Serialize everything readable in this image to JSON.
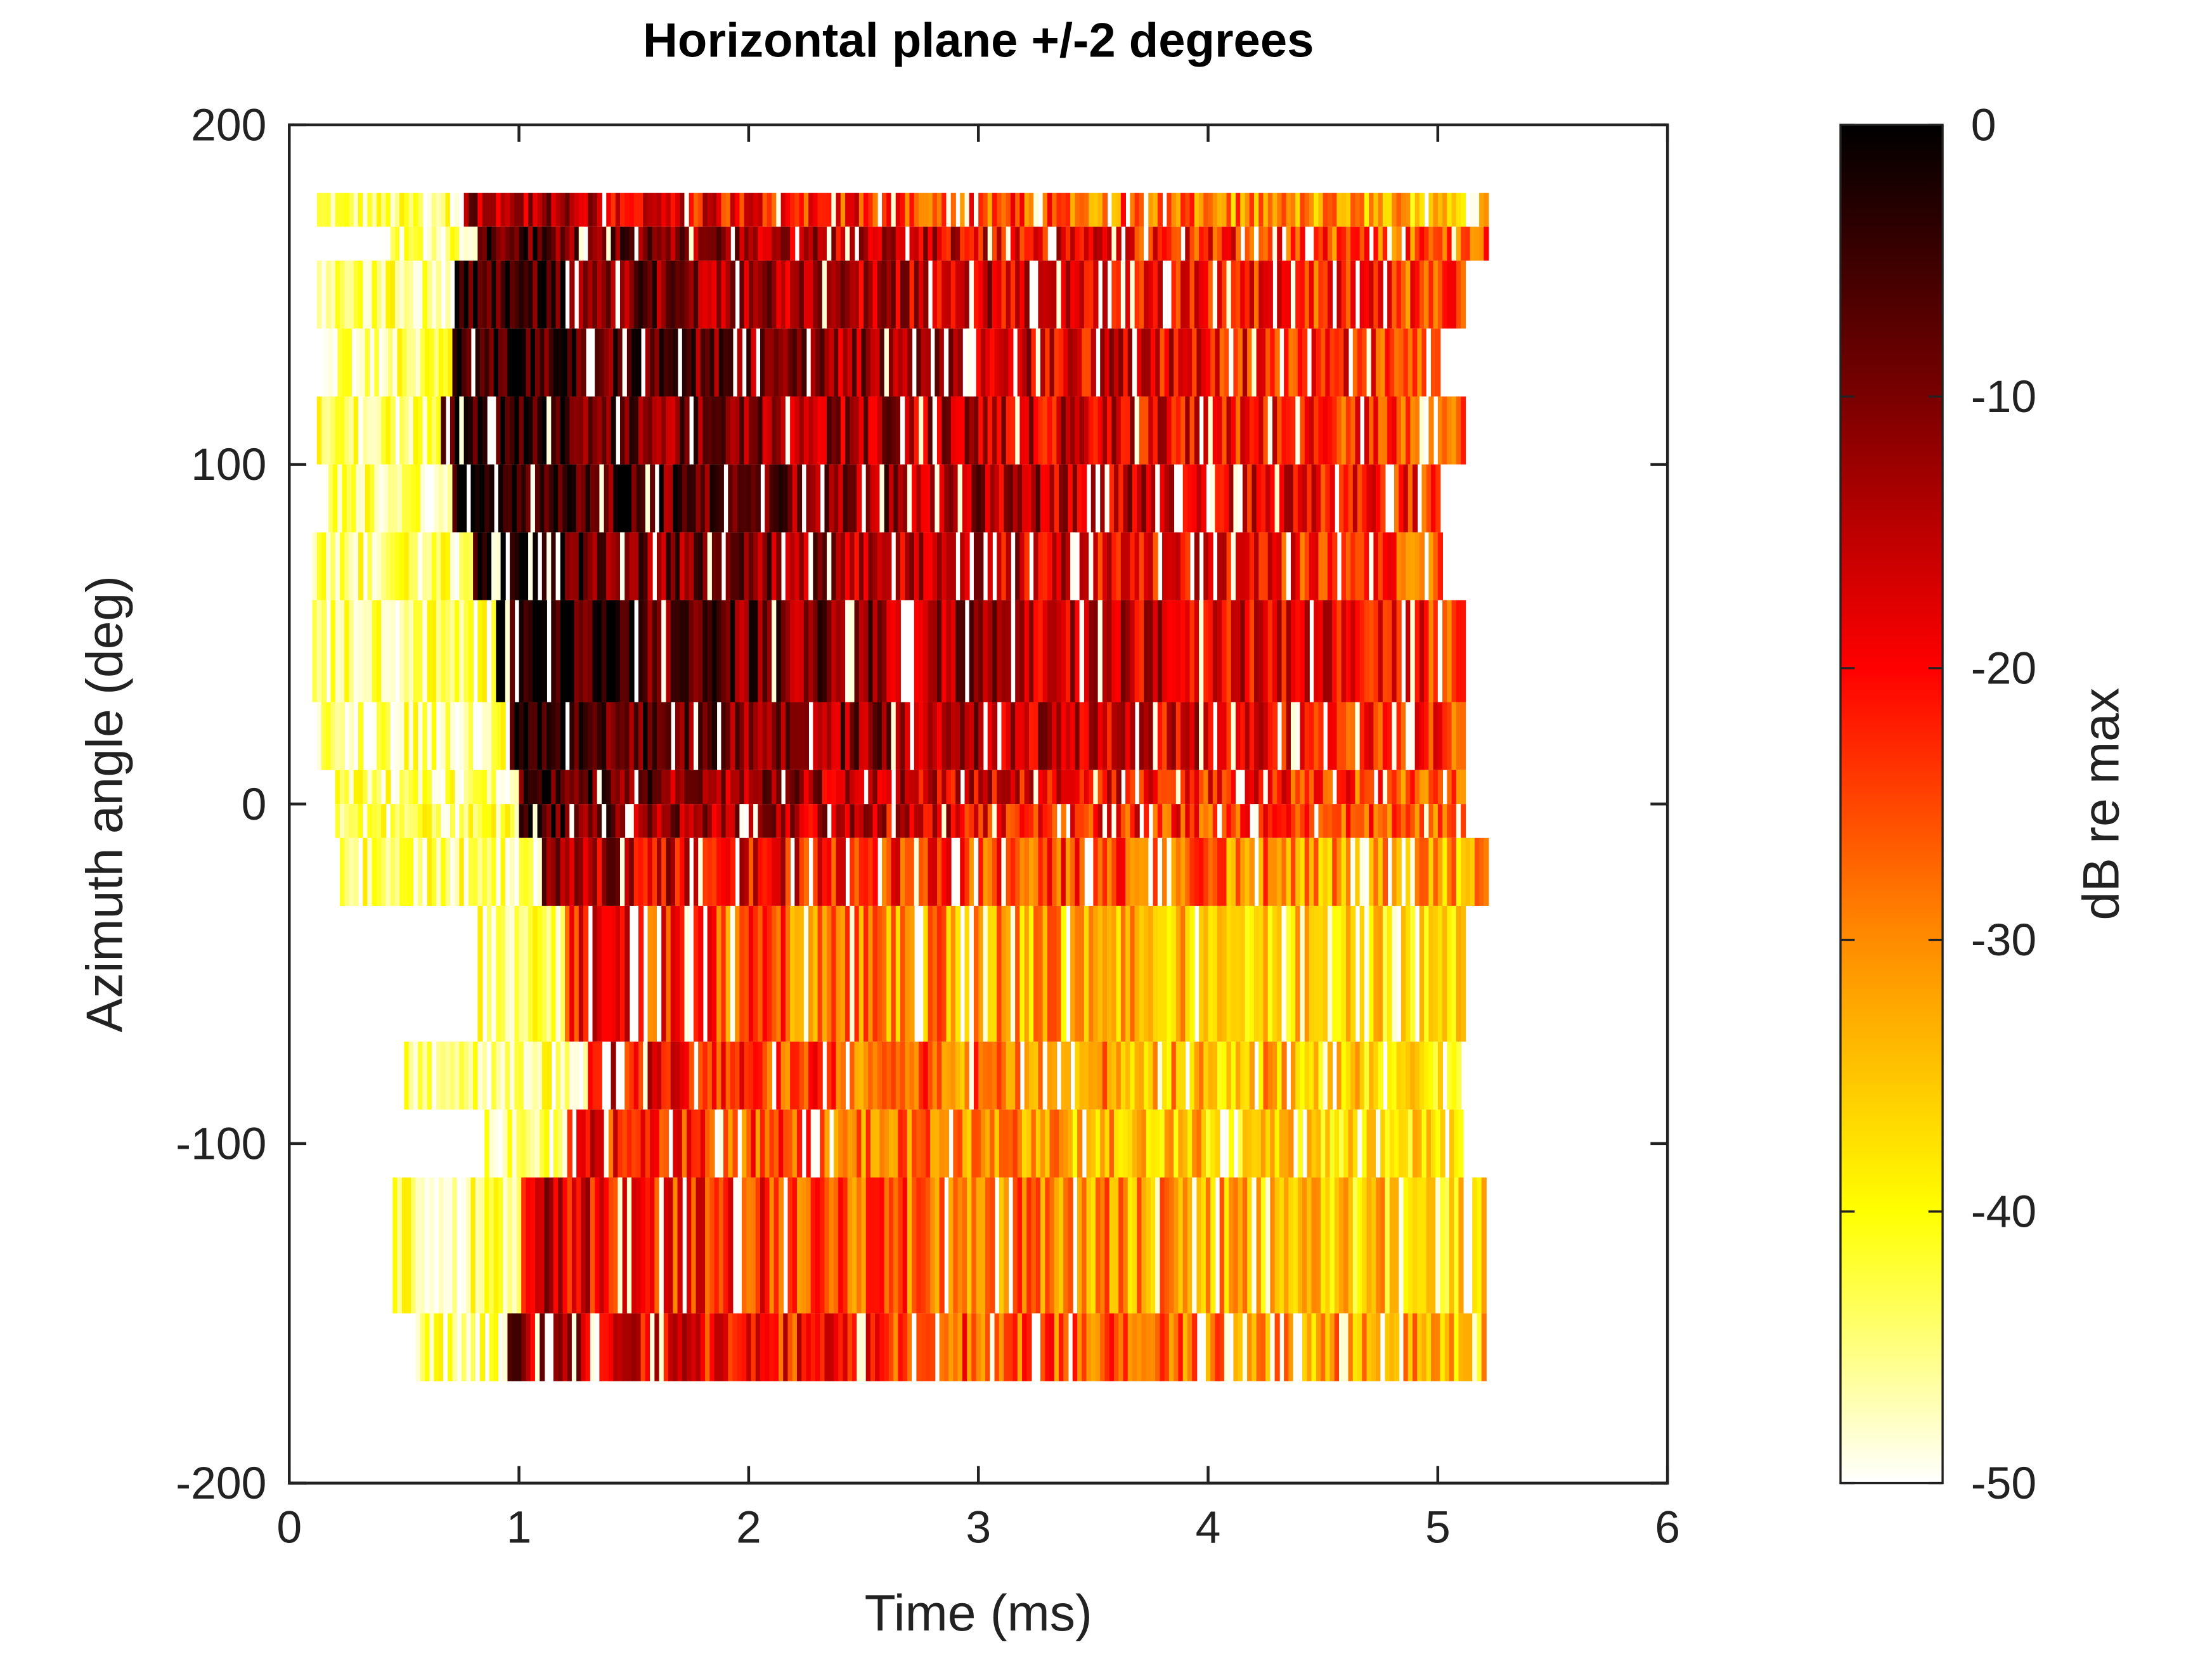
{
  "chart_data": {
    "type": "heatmap",
    "title": "Horizontal plane +/-2 degrees",
    "xlabel": "Time (ms)",
    "ylabel": "Azimuth angle (deg)",
    "xlim": [
      0,
      6
    ],
    "ylim": [
      -200,
      200
    ],
    "xticks": [
      0,
      1,
      2,
      3,
      4,
      5,
      6
    ],
    "yticks": [
      -200,
      -100,
      0,
      100,
      200
    ],
    "colorbar": {
      "label": "dB re max",
      "range": [
        -50,
        0
      ],
      "ticks": [
        0,
        -10,
        -20,
        -30,
        -40,
        -50
      ],
      "colormap": [
        "#000000",
        "#7a0000",
        "#ff0000",
        "#ff8c00",
        "#ffff00",
        "#ffffff"
      ]
    },
    "time_bin_ms": 0.02,
    "rows": [
      {
        "az": [
          170,
          180
        ],
        "t": [
          0.12,
          5.2
        ],
        "onset_ms": 0.85,
        "peak_db": -12
      },
      {
        "az": [
          160,
          170
        ],
        "t": [
          0.4,
          5.2
        ],
        "onset_ms": 0.9,
        "peak_db": -5
      },
      {
        "az": [
          140,
          160
        ],
        "t": [
          0.12,
          5.1
        ],
        "onset_ms": 0.8,
        "peak_db": -3
      },
      {
        "az": [
          120,
          140
        ],
        "t": [
          0.15,
          5.0
        ],
        "onset_ms": 0.8,
        "peak_db": -2
      },
      {
        "az": [
          100,
          120
        ],
        "t": [
          0.12,
          5.1
        ],
        "onset_ms": 0.75,
        "peak_db": -2
      },
      {
        "az": [
          80,
          100
        ],
        "t": [
          0.15,
          5.0
        ],
        "onset_ms": 0.8,
        "peak_db": 0
      },
      {
        "az": [
          60,
          80
        ],
        "t": [
          0.1,
          5.0
        ],
        "onset_ms": 0.9,
        "peak_db": -3
      },
      {
        "az": [
          30,
          60
        ],
        "t": [
          0.1,
          5.1
        ],
        "onset_ms": 1.0,
        "peak_db": -1
      },
      {
        "az": [
          10,
          30
        ],
        "t": [
          0.12,
          5.1
        ],
        "onset_ms": 1.05,
        "peak_db": -2
      },
      {
        "az": [
          0,
          10
        ],
        "t": [
          0.2,
          5.1
        ],
        "onset_ms": 1.1,
        "peak_db": -5
      },
      {
        "az": [
          -10,
          0
        ],
        "t": [
          0.2,
          5.1
        ],
        "onset_ms": 1.1,
        "peak_db": -7
      },
      {
        "az": [
          -30,
          -10
        ],
        "t": [
          0.22,
          5.2
        ],
        "onset_ms": 1.15,
        "peak_db": -12
      },
      {
        "az": [
          -70,
          -30
        ],
        "t": [
          0.8,
          5.1
        ],
        "onset_ms": 1.3,
        "peak_db": -20
      },
      {
        "az": [
          -90,
          -70
        ],
        "t": [
          0.5,
          5.1
        ],
        "onset_ms": 1.4,
        "peak_db": -18
      },
      {
        "az": [
          -110,
          -90
        ],
        "t": [
          0.85,
          5.1
        ],
        "onset_ms": 1.3,
        "peak_db": -20
      },
      {
        "az": [
          -150,
          -110
        ],
        "t": [
          0.45,
          5.2
        ],
        "onset_ms": 1.1,
        "peak_db": -16
      },
      {
        "az": [
          -170,
          -150
        ],
        "t": [
          0.55,
          5.2
        ],
        "onset_ms": 1.05,
        "peak_db": -13
      }
    ]
  }
}
